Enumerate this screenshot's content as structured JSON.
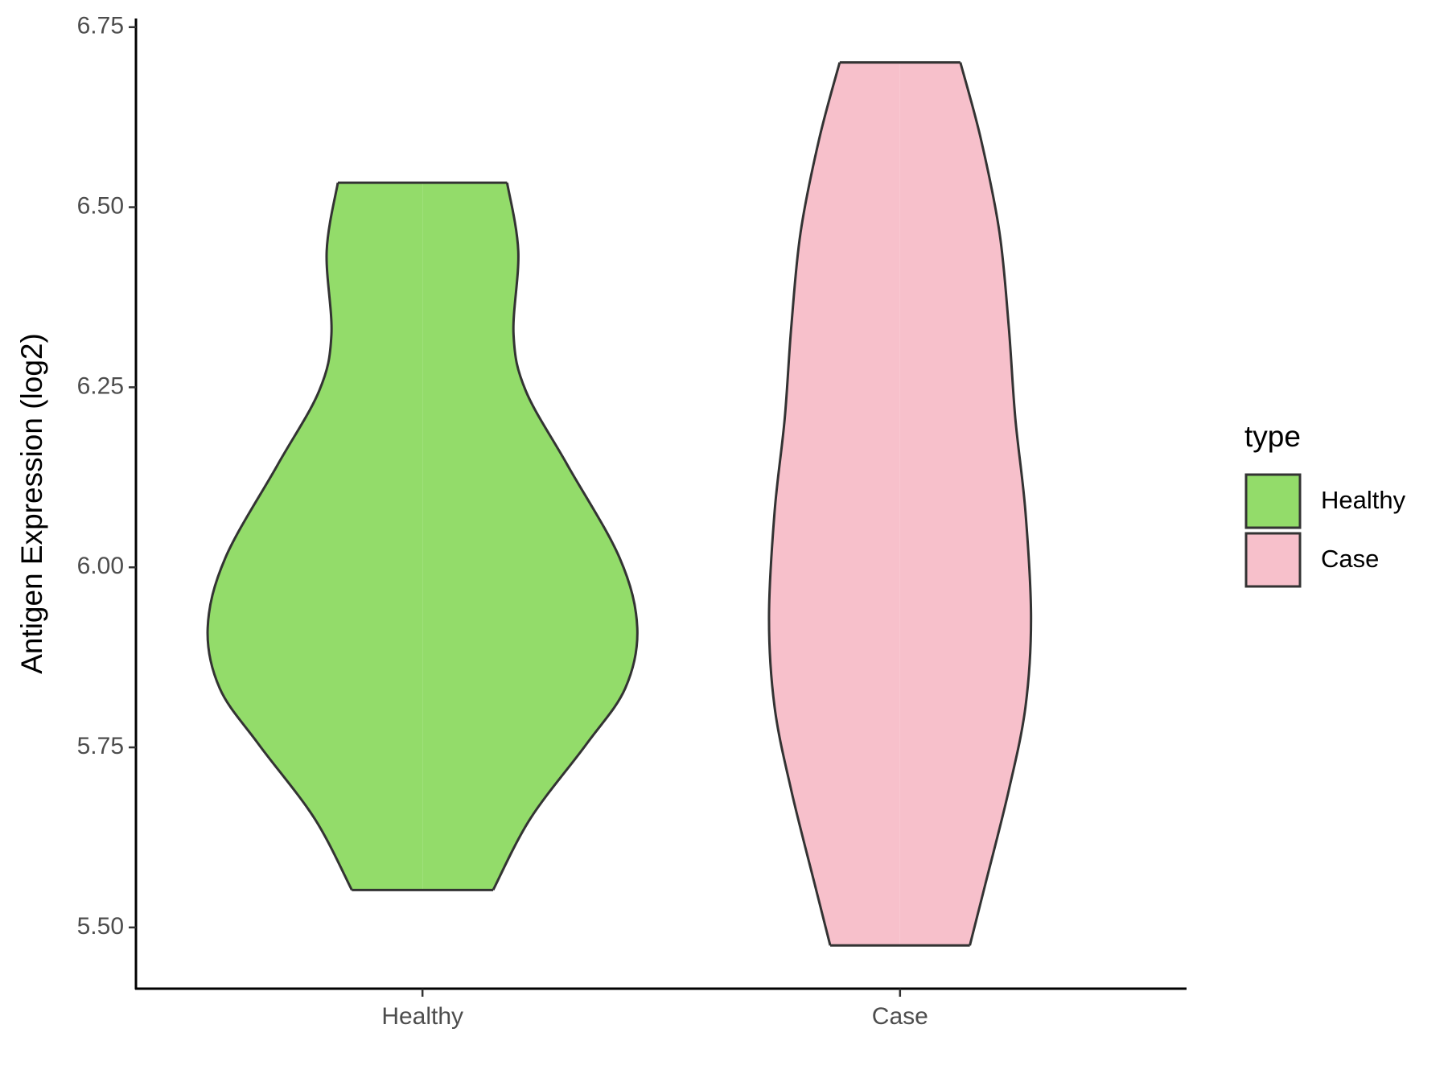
{
  "chart_data": {
    "type": "violin",
    "y_label": "Antigen Expression (log2)",
    "categories": [
      "Healthy",
      "Case"
    ],
    "ylim": [
      5.415,
      6.762
    ],
    "yticks": [
      {
        "value": 5.5,
        "label": "5.50"
      },
      {
        "value": 5.75,
        "label": "5.75"
      },
      {
        "value": 6,
        "label": "6.00"
      },
      {
        "value": 6.25,
        "label": "6.25"
      },
      {
        "value": 6.5,
        "label": "6.50"
      },
      {
        "value": 6.75,
        "label": "6.75"
      }
    ],
    "legend_title": "type",
    "series": [
      {
        "name": "Healthy",
        "color": "#93dc6a",
        "y": [
          6.534,
          6.439,
          6.323,
          6.245,
          6.142,
          6.013,
          5.916,
          5.832,
          5.754,
          5.651,
          5.552
        ],
        "density": [
          0.394,
          0.446,
          0.424,
          0.481,
          0.675,
          0.918,
          1,
          0.944,
          0.762,
          0.502,
          0.329
        ]
      },
      {
        "name": "Case",
        "color": "#f7c0cb",
        "y": [
          6.701,
          6.594,
          6.465,
          6.335,
          6.206,
          6.077,
          5.929,
          5.806,
          5.69,
          5.561,
          5.475
        ],
        "density": [
          0.281,
          0.377,
          0.463,
          0.506,
          0.537,
          0.584,
          0.61,
          0.584,
          0.506,
          0.398,
          0.325
        ]
      }
    ]
  }
}
